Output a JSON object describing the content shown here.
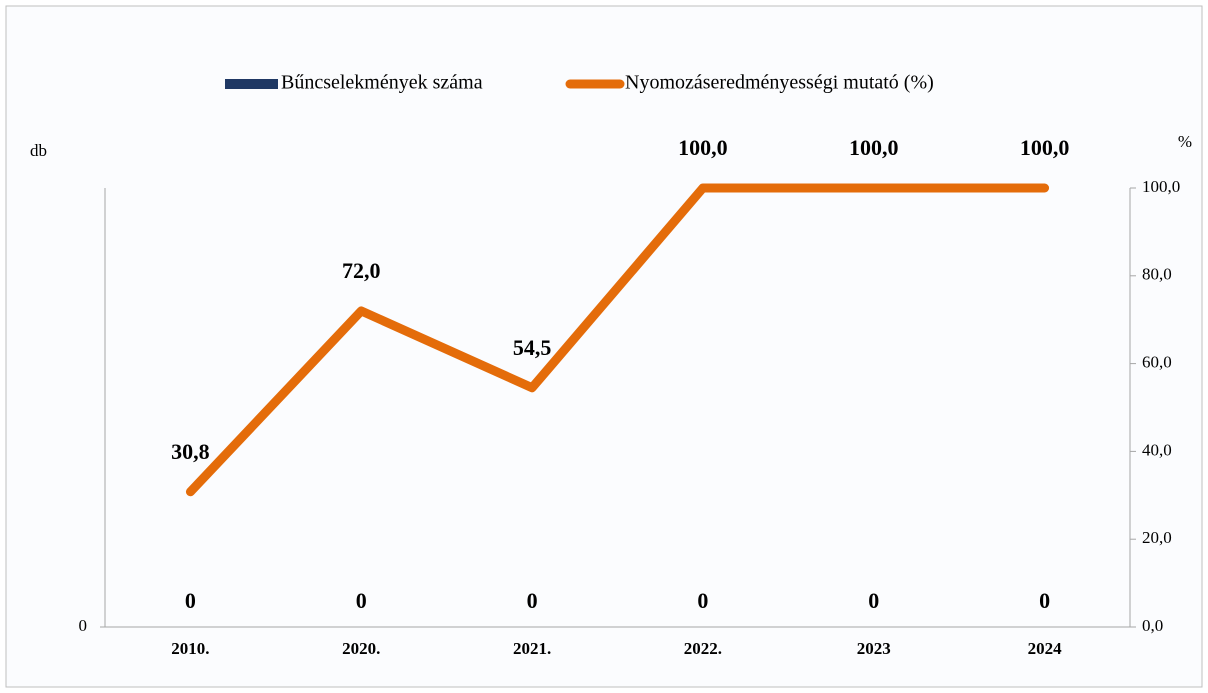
{
  "chart_data": {
    "type": "combo",
    "legend": "top",
    "categories": [
      "2010.",
      "2020.",
      "2021.",
      "2022.",
      "2023",
      "2024"
    ],
    "y_label": "db",
    "y2_label": "%",
    "ylim": [
      0,
      1
    ],
    "yticks": [
      0
    ],
    "y2lim": [
      0,
      100
    ],
    "y2ticks": [
      {
        "value": 0,
        "label": "0,0"
      },
      {
        "value": 20,
        "label": "20,0"
      },
      {
        "value": 40,
        "label": "40,0"
      },
      {
        "value": 60,
        "label": "60,0"
      },
      {
        "value": 80,
        "label": "80,0"
      },
      {
        "value": 100,
        "label": "100,0"
      }
    ],
    "series": [
      {
        "name": "Bűncselekmények száma",
        "type": "bar",
        "color": "#1f3864",
        "values": [
          0,
          0,
          0,
          0,
          0,
          0
        ]
      },
      {
        "name": "Nyomozáseredményességi mutató (%)",
        "type": "line",
        "axis": "y2",
        "color": "#e46c0a",
        "values": [
          30.8,
          72.0,
          54.5,
          100.0,
          100.0,
          100.0
        ],
        "value_labels": [
          "30,8",
          "72,0",
          "54,5",
          "100,0",
          "100,0",
          "100,0"
        ]
      }
    ]
  }
}
